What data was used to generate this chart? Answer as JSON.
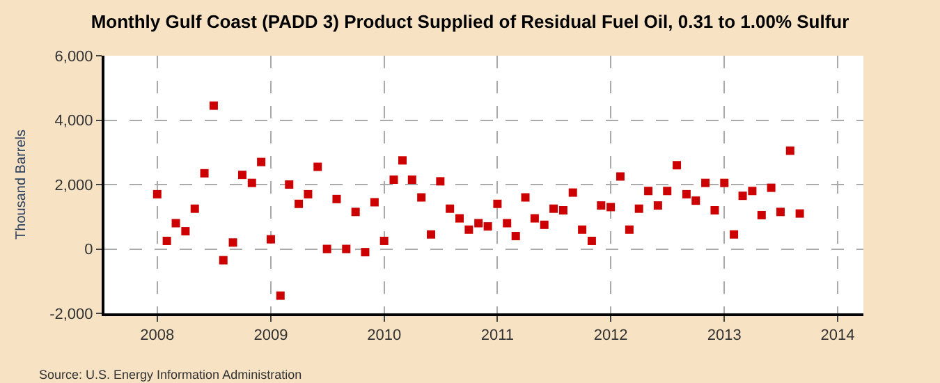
{
  "chart_data": {
    "type": "scatter",
    "title": "Monthly Gulf Coast (PADD 3) Product Supplied of Residual Fuel Oil, 0.31 to 1.00% Sulfur",
    "ylabel": "Thousand Barrels",
    "annotations": [
      "Source: U.S. Energy Information Administration"
    ],
    "x": [
      "2008-01",
      "2008-02",
      "2008-03",
      "2008-04",
      "2008-05",
      "2008-06",
      "2008-07",
      "2008-08",
      "2008-09",
      "2008-10",
      "2008-11",
      "2008-12",
      "2009-01",
      "2009-02",
      "2009-03",
      "2009-04",
      "2009-05",
      "2009-06",
      "2009-07",
      "2009-08",
      "2009-09",
      "2009-10",
      "2009-11",
      "2009-12",
      "2010-01",
      "2010-02",
      "2010-03",
      "2010-04",
      "2010-05",
      "2010-06",
      "2010-07",
      "2010-08",
      "2010-09",
      "2010-10",
      "2010-11",
      "2010-12",
      "2011-01",
      "2011-02",
      "2011-03",
      "2011-04",
      "2011-05",
      "2011-06",
      "2011-07",
      "2011-08",
      "2011-09",
      "2011-10",
      "2011-11",
      "2011-12",
      "2012-01",
      "2012-02",
      "2012-03",
      "2012-04",
      "2012-05",
      "2012-06",
      "2012-07",
      "2012-08",
      "2012-09",
      "2012-10",
      "2012-11",
      "2012-12",
      "2013-01",
      "2013-02",
      "2013-03",
      "2013-04",
      "2013-05",
      "2013-06",
      "2013-07",
      "2013-08",
      "2013-09"
    ],
    "series": [
      {
        "color": "#cc0000",
        "values": [
          1700,
          250,
          800,
          550,
          1250,
          2350,
          4450,
          -350,
          200,
          2300,
          2050,
          2700,
          300,
          -1450,
          2000,
          1400,
          1700,
          2550,
          0,
          1550,
          0,
          1150,
          -100,
          1450,
          250,
          2150,
          2750,
          2150,
          1600,
          450,
          2100,
          1250,
          950,
          600,
          800,
          700,
          1400,
          800,
          400,
          1600,
          950,
          750,
          1250,
          1200,
          1750,
          600,
          250,
          1350,
          1300,
          2250,
          600,
          1250,
          1800,
          1350,
          1800,
          2600,
          1700,
          1500,
          2050,
          1200,
          2050,
          450,
          1650,
          1800,
          1050,
          1900,
          1150,
          3050,
          1100
        ]
      }
    ],
    "xlim": [
      "2007-07-15",
      "2014-03-25"
    ],
    "xticks": [
      {
        "value": "2008-01-01",
        "label": "2008"
      },
      {
        "value": "2009-01-01",
        "label": "2009"
      },
      {
        "value": "2010-01-01",
        "label": "2010"
      },
      {
        "value": "2011-01-01",
        "label": "2011"
      },
      {
        "value": "2012-01-01",
        "label": "2012"
      },
      {
        "value": "2013-01-01",
        "label": "2013"
      },
      {
        "value": "2014-01-01",
        "label": "2014"
      }
    ],
    "ylim": [
      -2000,
      6000
    ],
    "yticks": [
      {
        "value": -2000,
        "label": "-2,000"
      },
      {
        "value": 0,
        "label": "0"
      },
      {
        "value": 2000,
        "label": "2,000"
      },
      {
        "value": 4000,
        "label": "4,000"
      },
      {
        "value": 6000,
        "label": "6,000"
      }
    ],
    "grid": true,
    "marker": "square"
  }
}
